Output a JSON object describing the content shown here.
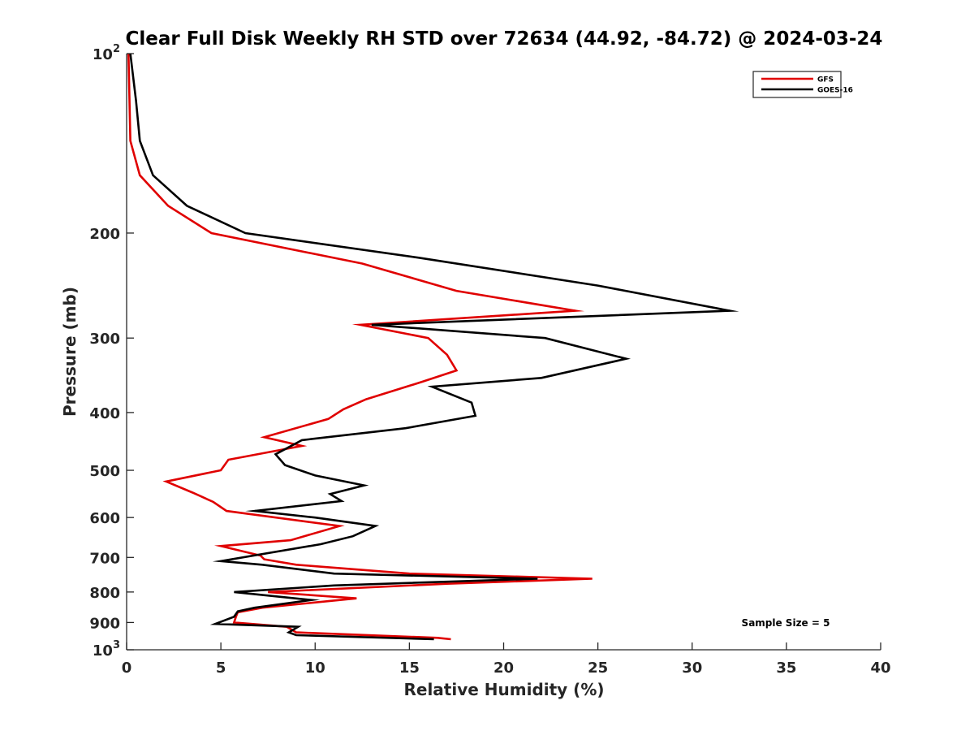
{
  "chart_data": {
    "type": "line",
    "title": "Clear Full Disk Weekly RH STD over 72634 (44.92, -84.72) @ 2024-03-24",
    "xlabel": "Relative Humidity (%)",
    "ylabel": "Pressure (mb)",
    "xlim": [
      0,
      40
    ],
    "ylim": [
      100,
      1000
    ],
    "yscale": "log",
    "yreversed": true,
    "grid": false,
    "xticks": [
      0,
      5,
      10,
      15,
      20,
      25,
      30,
      35,
      40
    ],
    "xtick_labels": [
      "0",
      "5",
      "10",
      "15",
      "20",
      "25",
      "30",
      "35",
      "40"
    ],
    "yticks": [
      100,
      200,
      300,
      400,
      500,
      600,
      700,
      800,
      900,
      1000
    ],
    "ytick_labels": [
      {
        "base": "10",
        "exp": "2"
      },
      {
        "base": "200",
        "exp": ""
      },
      {
        "base": "300",
        "exp": ""
      },
      {
        "base": "400",
        "exp": ""
      },
      {
        "base": "500",
        "exp": ""
      },
      {
        "base": "600",
        "exp": ""
      },
      {
        "base": "700",
        "exp": ""
      },
      {
        "base": "800",
        "exp": ""
      },
      {
        "base": "900",
        "exp": ""
      },
      {
        "base": "10",
        "exp": "3"
      }
    ],
    "legend": {
      "position": "top-right"
    },
    "annotation": "Sample Size = 5",
    "series": [
      {
        "name": "GFS",
        "color": "#e00000",
        "points": [
          [
            0.1,
            100
          ],
          [
            0.2,
            140
          ],
          [
            0.7,
            160
          ],
          [
            2.2,
            180
          ],
          [
            4.5,
            200
          ],
          [
            12.5,
            225
          ],
          [
            17.5,
            250
          ],
          [
            23.8,
            270
          ],
          [
            12.4,
            285
          ],
          [
            16.0,
            300
          ],
          [
            17.0,
            320
          ],
          [
            17.5,
            340
          ],
          [
            15.7,
            355
          ],
          [
            12.7,
            380
          ],
          [
            11.5,
            395
          ],
          [
            10.7,
            410
          ],
          [
            7.3,
            440
          ],
          [
            9.3,
            455
          ],
          [
            5.4,
            480
          ],
          [
            5.0,
            500
          ],
          [
            2.1,
            522
          ],
          [
            3.5,
            545
          ],
          [
            4.6,
            565
          ],
          [
            5.3,
            585
          ],
          [
            11.3,
            620
          ],
          [
            8.7,
            655
          ],
          [
            5.0,
            670
          ],
          [
            7.1,
            695
          ],
          [
            7.3,
            705
          ],
          [
            9.0,
            720
          ],
          [
            15.0,
            745
          ],
          [
            24.7,
            760
          ],
          [
            17.0,
            775
          ],
          [
            7.5,
            800
          ],
          [
            12.2,
            820
          ],
          [
            7.2,
            850
          ],
          [
            5.9,
            865
          ],
          [
            5.8,
            880
          ],
          [
            5.7,
            900
          ],
          [
            8.5,
            915
          ],
          [
            9.0,
            935
          ],
          [
            16.5,
            955
          ],
          [
            17.2,
            960
          ]
        ]
      },
      {
        "name": "GOES-16",
        "color": "#000000",
        "points": [
          [
            0.2,
            100
          ],
          [
            0.5,
            120
          ],
          [
            0.7,
            140
          ],
          [
            1.4,
            160
          ],
          [
            3.2,
            180
          ],
          [
            6.3,
            200
          ],
          [
            15.5,
            220
          ],
          [
            25.0,
            245
          ],
          [
            32.0,
            270
          ],
          [
            13.0,
            285
          ],
          [
            22.2,
            300
          ],
          [
            26.5,
            325
          ],
          [
            22.0,
            350
          ],
          [
            16.2,
            362
          ],
          [
            18.3,
            385
          ],
          [
            18.5,
            405
          ],
          [
            14.8,
            425
          ],
          [
            9.3,
            445
          ],
          [
            7.9,
            470
          ],
          [
            8.4,
            490
          ],
          [
            10.0,
            510
          ],
          [
            12.6,
            530
          ],
          [
            10.8,
            548
          ],
          [
            11.4,
            563
          ],
          [
            6.8,
            585
          ],
          [
            10.0,
            600
          ],
          [
            13.2,
            620
          ],
          [
            12.0,
            645
          ],
          [
            10.3,
            665
          ],
          [
            5.0,
            710
          ],
          [
            7.2,
            720
          ],
          [
            11.0,
            745
          ],
          [
            21.8,
            760
          ],
          [
            11.0,
            780
          ],
          [
            5.7,
            800
          ],
          [
            9.8,
            825
          ],
          [
            6.8,
            850
          ],
          [
            5.9,
            862
          ],
          [
            5.7,
            880
          ],
          [
            4.7,
            905
          ],
          [
            9.1,
            915
          ],
          [
            8.6,
            935
          ],
          [
            9.0,
            945
          ],
          [
            16.3,
            960
          ]
        ]
      }
    ]
  }
}
